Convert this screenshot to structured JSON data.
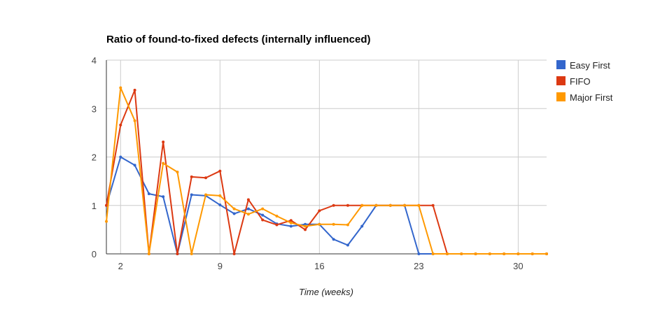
{
  "chart_data": {
    "type": "line",
    "title": "Ratio of found-to-fixed defects (internally influenced)",
    "xlabel": "Time (weeks)",
    "ylabel": "",
    "xlim": [
      1,
      32
    ],
    "ylim": [
      0,
      4
    ],
    "x_ticks": [
      2,
      9,
      16,
      23,
      30
    ],
    "y_ticks": [
      0,
      1,
      2,
      3,
      4
    ],
    "grid": true,
    "legend_position": "right",
    "x": [
      1,
      2,
      3,
      4,
      5,
      6,
      7,
      8,
      9,
      10,
      11,
      12,
      13,
      14,
      15,
      16,
      17,
      18,
      19,
      20,
      21,
      22,
      23,
      24,
      25,
      26,
      27,
      28,
      29,
      30,
      31,
      32
    ],
    "series": [
      {
        "name": "Easy First",
        "color": "#3366cc",
        "values": [
          1.0,
          2.0,
          1.83,
          1.24,
          1.18,
          0.0,
          1.22,
          1.2,
          1.01,
          0.83,
          0.93,
          0.8,
          0.62,
          0.57,
          0.61,
          0.61,
          0.3,
          0.18,
          0.57,
          1.0,
          1.0,
          1.0,
          0.0,
          0.0,
          0.0,
          0.0,
          0.0,
          0.0,
          0.0,
          0.0,
          0.0,
          0.0
        ]
      },
      {
        "name": "FIFO",
        "color": "#dc3912",
        "values": [
          1.0,
          2.66,
          3.38,
          0.0,
          2.31,
          0.0,
          1.59,
          1.57,
          1.71,
          0.0,
          1.12,
          0.7,
          0.6,
          0.69,
          0.5,
          0.89,
          1.0,
          1.0,
          1.0,
          1.0,
          1.0,
          1.0,
          1.0,
          1.0,
          0.0,
          0.0,
          0.0,
          0.0,
          0.0,
          0.0,
          0.0,
          0.0
        ]
      },
      {
        "name": "Major First",
        "color": "#ff9900",
        "values": [
          0.67,
          3.43,
          2.75,
          0.0,
          1.87,
          1.69,
          0.0,
          1.22,
          1.2,
          0.93,
          0.82,
          0.93,
          0.78,
          0.64,
          0.57,
          0.61,
          0.61,
          0.6,
          1.0,
          1.0,
          1.0,
          1.0,
          1.0,
          0.0,
          0.0,
          0.0,
          0.0,
          0.0,
          0.0,
          0.0,
          0.0,
          0.0
        ]
      }
    ]
  }
}
